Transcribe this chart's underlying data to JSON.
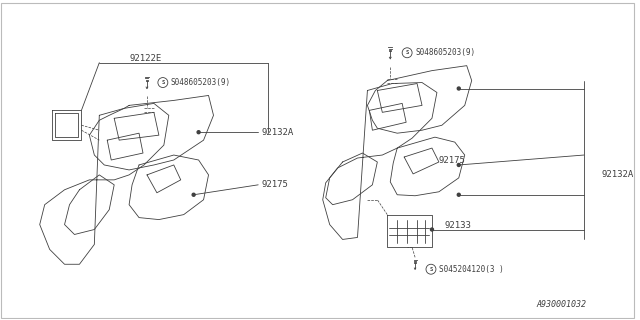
{
  "bg_color": "#ffffff",
  "line_color": "#404040",
  "diagram_number": "A930001032",
  "left_label_92122E": "92122E",
  "left_label_screw": "S048605203(9)",
  "left_label_92132A": "92132A",
  "left_label_92175": "92175",
  "right_label_screw": "S048605203(9)",
  "right_label_92175": "92175",
  "right_label_92132A": "92132A",
  "right_label_92133": "92133",
  "right_label_screw2": "S045204120(3 )"
}
